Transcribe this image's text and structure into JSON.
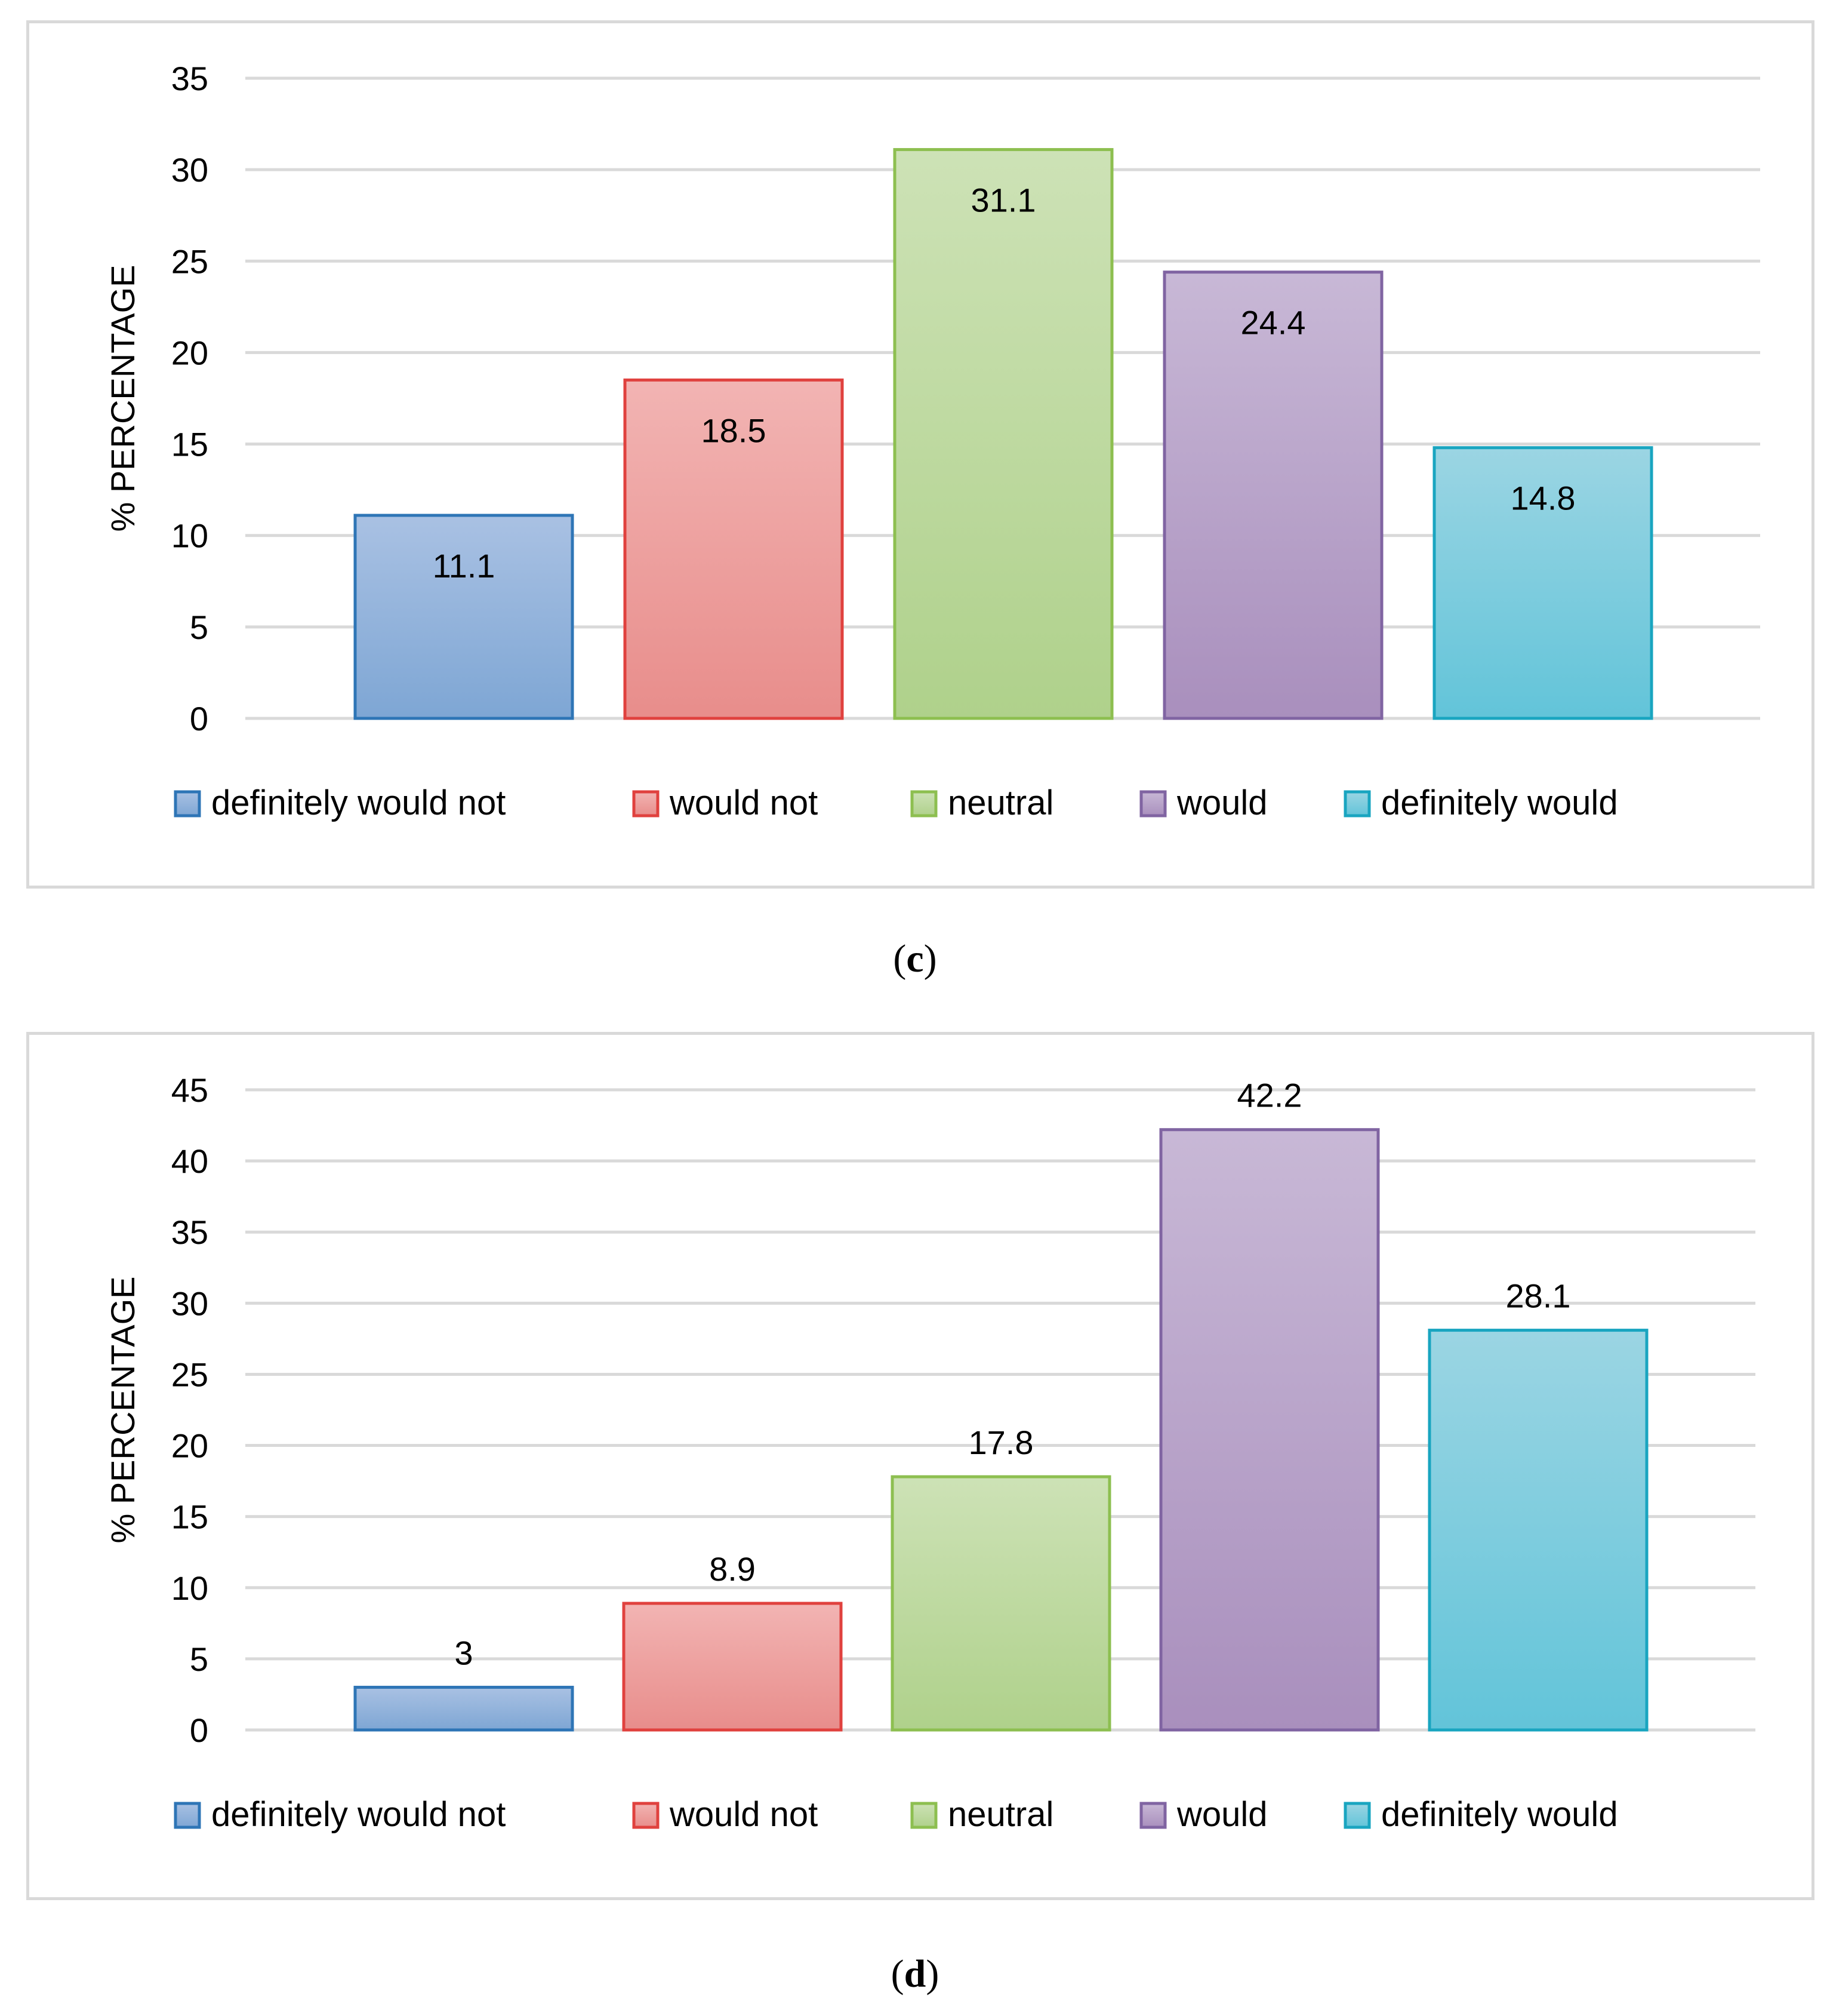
{
  "chart_data": [
    {
      "type": "bar",
      "panel": "c",
      "caption": {
        "open": "(",
        "letter": "c",
        "close": ")"
      },
      "ylabel": "% PERCENTAGE",
      "xlabel": "",
      "ylim": [
        0,
        35
      ],
      "yticks": [
        0,
        5,
        10,
        15,
        20,
        25,
        30,
        35
      ],
      "grid": true,
      "legend_position": "bottom",
      "label_placement": "inside",
      "categories": [
        "definitely would not",
        "would not",
        "neutral",
        "would",
        "definitely would"
      ],
      "values": [
        11.1,
        18.5,
        31.1,
        24.4,
        14.8
      ],
      "labels": [
        "11.1",
        "18.5",
        "31.1",
        "24.4",
        "14.8"
      ],
      "colors": [
        {
          "top": "#a9c1e3",
          "bottom": "#7ea6d4",
          "stroke": "#2e75b6"
        },
        {
          "top": "#f2b4b3",
          "bottom": "#e88d8b",
          "stroke": "#e0413e"
        },
        {
          "top": "#cde2b6",
          "bottom": "#afd18b",
          "stroke": "#8dbf50"
        },
        {
          "top": "#c8b8d6",
          "bottom": "#a98fbd",
          "stroke": "#8064a2"
        },
        {
          "top": "#9bd5e3",
          "bottom": "#62c4d9",
          "stroke": "#19a5c0"
        }
      ]
    },
    {
      "type": "bar",
      "panel": "d",
      "caption": {
        "open": "(",
        "letter": "d",
        "close": ")"
      },
      "ylabel": "% PERCENTAGE",
      "xlabel": "",
      "ylim": [
        0,
        45
      ],
      "yticks": [
        0,
        5,
        10,
        15,
        20,
        25,
        30,
        35,
        40,
        45
      ],
      "grid": true,
      "legend_position": "bottom",
      "label_placement": "above",
      "categories": [
        "definitely would not",
        "would not",
        "neutral",
        "would",
        "definitely would"
      ],
      "values": [
        3,
        8.9,
        17.8,
        42.2,
        28.1
      ],
      "labels": [
        "3",
        "8.9",
        "17.8",
        "42.2",
        "28.1"
      ],
      "colors": [
        {
          "top": "#a9c1e3",
          "bottom": "#7ea6d4",
          "stroke": "#2e75b6"
        },
        {
          "top": "#f2b4b3",
          "bottom": "#e88d8b",
          "stroke": "#e0413e"
        },
        {
          "top": "#cde2b6",
          "bottom": "#afd18b",
          "stroke": "#8dbf50"
        },
        {
          "top": "#c8b8d6",
          "bottom": "#a98fbd",
          "stroke": "#8064a2"
        },
        {
          "top": "#9bd5e3",
          "bottom": "#62c4d9",
          "stroke": "#19a5c0"
        }
      ]
    }
  ]
}
